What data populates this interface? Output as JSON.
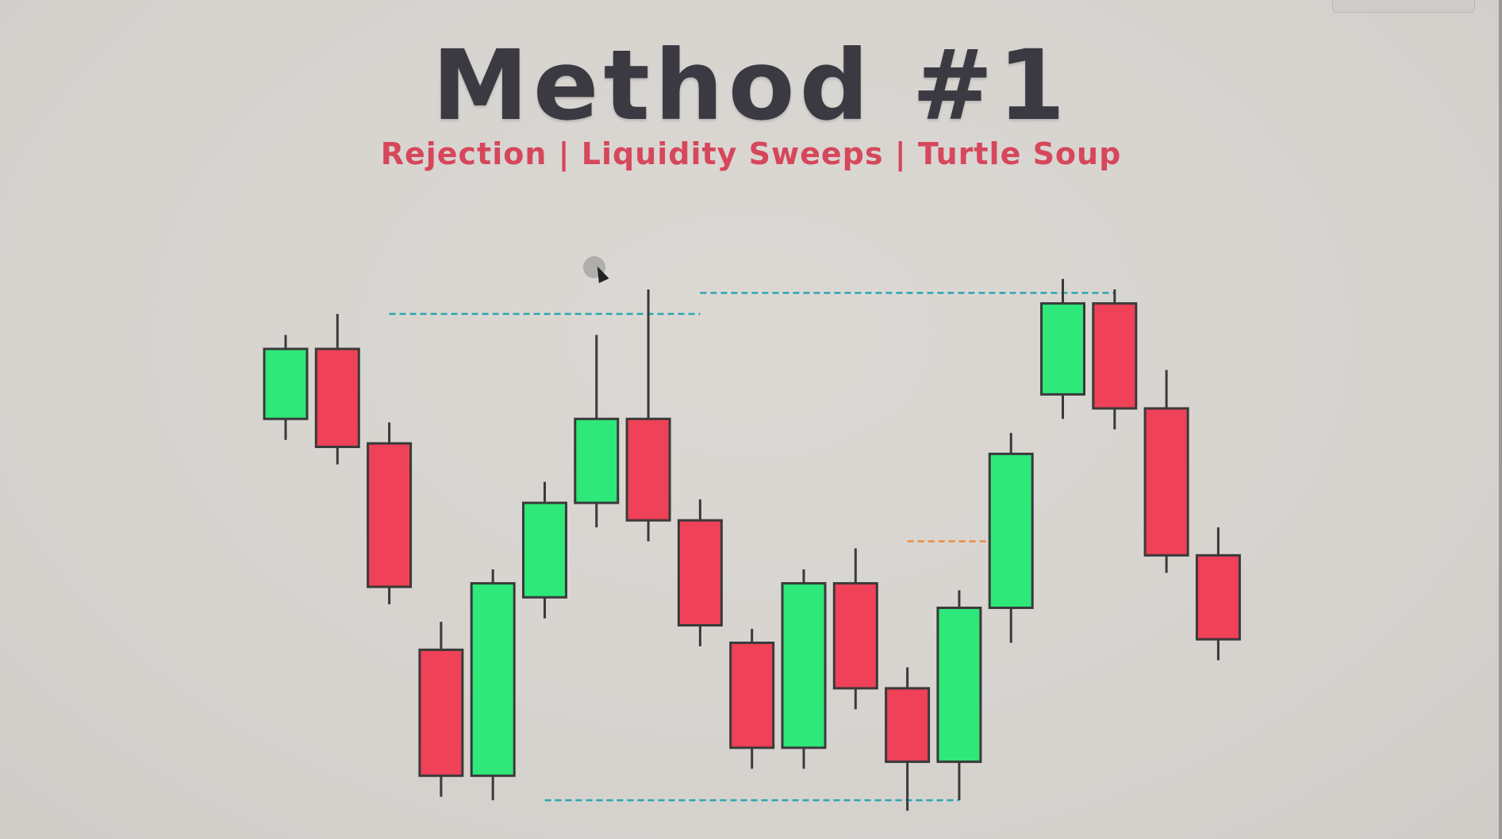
{
  "title": "Method #1",
  "subtitle": "Rejection | Liquidity Sweeps | Turtle Soup",
  "colors": {
    "bullish": "#2ee87a",
    "bearish": "#ef4157",
    "outline": "#3a3a3a",
    "level_line": "#2aa6b0",
    "orange_line": "#f08a3c"
  },
  "chart_data": {
    "type": "candlestick",
    "candles": [
      {
        "open": 53.0,
        "close": 63.0,
        "high": 65.0,
        "low": 50.0
      },
      {
        "open": 63.0,
        "close": 49.0,
        "high": 68.0,
        "low": 46.5
      },
      {
        "open": 49.5,
        "close": 29.0,
        "high": 52.5,
        "low": 26.5
      },
      {
        "open": 20.0,
        "close": 2.0,
        "high": 24.0,
        "low": -1.0
      },
      {
        "open": 2.0,
        "close": 29.5,
        "high": 31.5,
        "low": -1.5
      },
      {
        "open": 27.5,
        "close": 41.0,
        "high": 44.0,
        "low": 24.5
      },
      {
        "open": 41.0,
        "close": 53.0,
        "high": 65.0,
        "low": 37.5
      },
      {
        "open": 53.0,
        "close": 38.5,
        "high": 71.5,
        "low": 35.5
      },
      {
        "open": 38.5,
        "close": 23.5,
        "high": 41.5,
        "low": 20.5
      },
      {
        "open": 21.0,
        "close": 6.0,
        "high": 23.0,
        "low": 3.0
      },
      {
        "open": 6.0,
        "close": 29.5,
        "high": 31.5,
        "low": 3.0
      },
      {
        "open": 29.5,
        "close": 14.5,
        "high": 34.5,
        "low": 11.5
      },
      {
        "open": 14.5,
        "close": 4.0,
        "high": 17.5,
        "low": -3.0
      },
      {
        "open": 4.0,
        "close": 26.0,
        "high": 28.5,
        "low": -1.5
      },
      {
        "open": 26.0,
        "close": 48.0,
        "high": 51.0,
        "low": 21.0
      },
      {
        "open": 56.5,
        "close": 69.5,
        "high": 73.0,
        "low": 53.0
      },
      {
        "open": 69.5,
        "close": 54.5,
        "high": 71.5,
        "low": 51.5
      },
      {
        "open": 54.5,
        "close": 33.5,
        "high": 60.0,
        "low": 31.0
      },
      {
        "open": 33.5,
        "close": 21.5,
        "high": 37.5,
        "low": 18.5
      }
    ],
    "ylim": [
      -5,
      80
    ],
    "levels": [
      {
        "style": "dashed",
        "color": "teal",
        "y": 68.0,
        "from": 2,
        "to": 8
      },
      {
        "style": "dashed",
        "color": "teal",
        "y": 71.0,
        "from": 8,
        "to": 16
      },
      {
        "style": "dashed",
        "color": "teal",
        "y": -1.5,
        "from": 5,
        "to": 13
      },
      {
        "style": "dashed",
        "color": "orange",
        "y": 35.5,
        "from": 12,
        "to": 14
      }
    ],
    "grid": false,
    "legend": "none"
  }
}
